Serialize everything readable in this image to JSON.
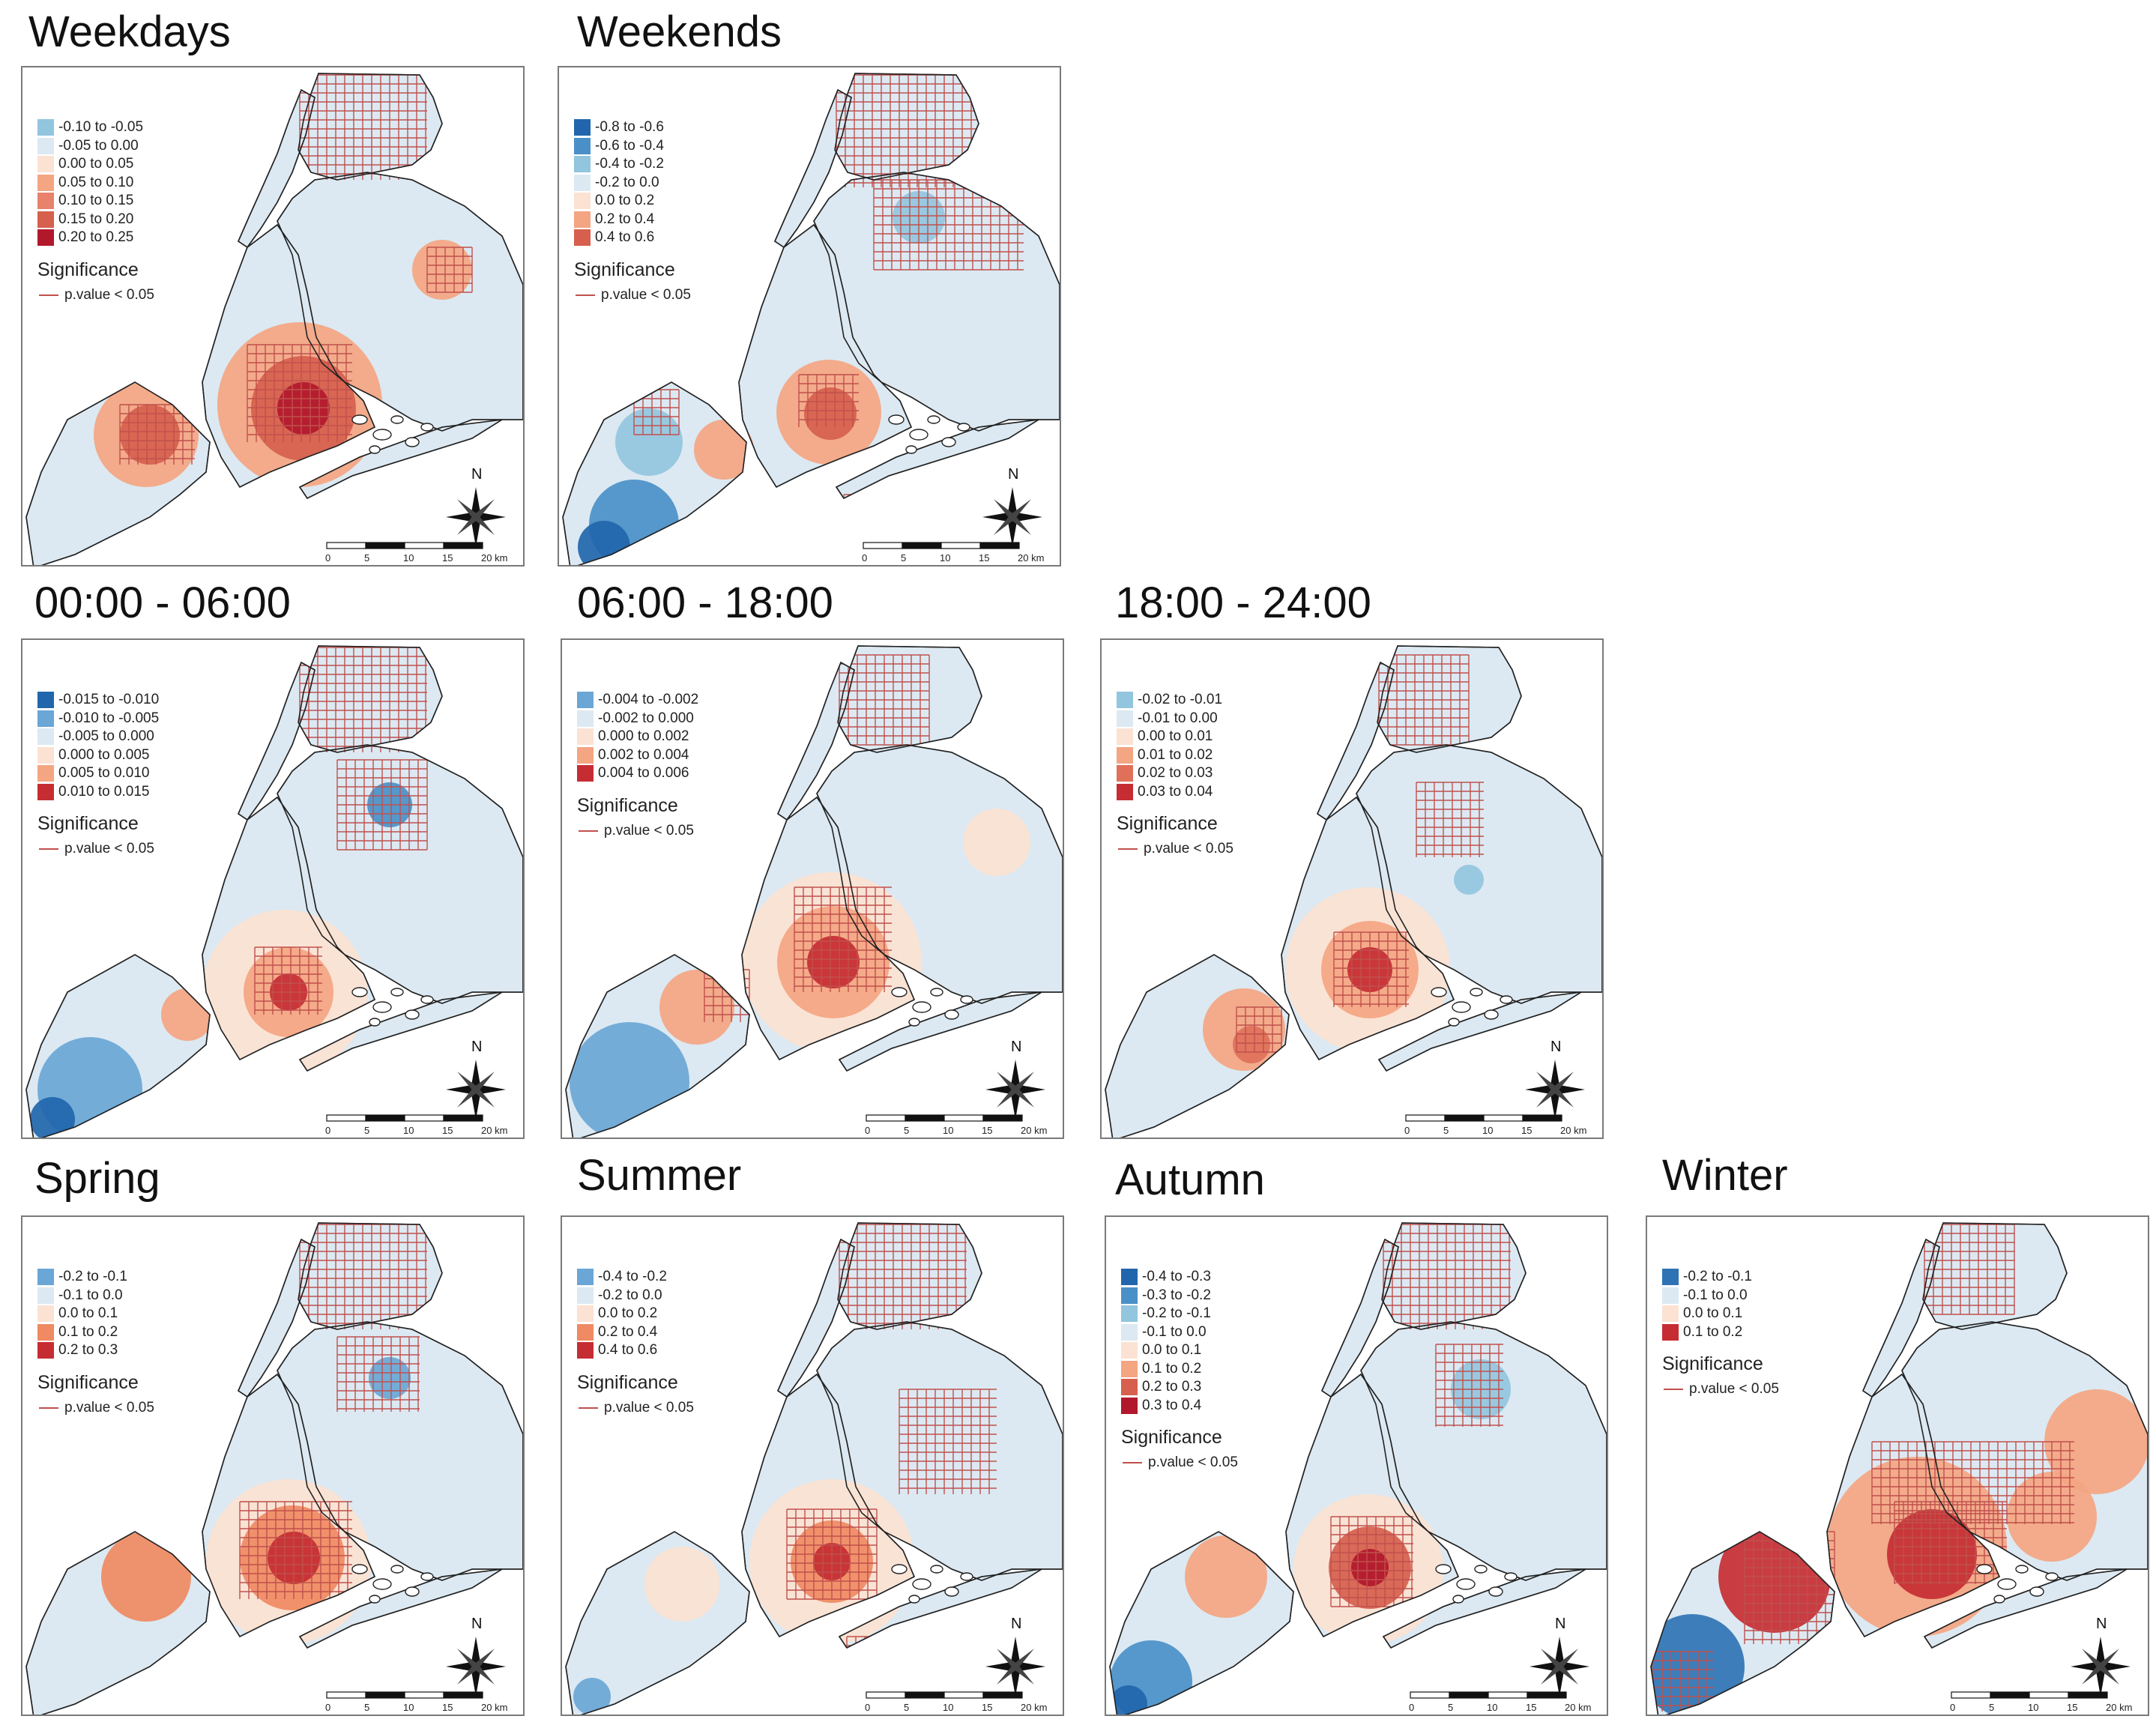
{
  "figure": {
    "significance_title": "Significance",
    "significance_label": "p.value < 0.05",
    "north_label": "N",
    "scale_ticks": [
      "0",
      "5",
      "10",
      "15",
      "20 km"
    ],
    "colors": {
      "blue_dark": "#2166ac",
      "blue_mid": "#4a90c8",
      "blue_light": "#92c5de",
      "blue_pale": "#dce9f2",
      "red_pale": "#fbe2d3",
      "red_light": "#f4a582",
      "red_mid": "#dd5a4a",
      "red_dark": "#b2182b",
      "grid": "#c0504d"
    }
  },
  "panels": [
    {
      "title": "Weekdays",
      "legend": [
        {
          "label": "-0.10 to -0.05",
          "color": "#92c5de"
        },
        {
          "label": "-0.05 to 0.00",
          "color": "#dce9f2"
        },
        {
          "label": "0.00 to 0.05",
          "color": "#fbe2d3"
        },
        {
          "label": "0.05 to 0.10",
          "color": "#f4a582"
        },
        {
          "label": "0.10 to 0.15",
          "color": "#e8826b"
        },
        {
          "label": "0.15 to 0.20",
          "color": "#d6604d"
        },
        {
          "label": "0.20 to 0.25",
          "color": "#b2182b"
        }
      ]
    },
    {
      "title": "Weekends",
      "legend": [
        {
          "label": "-0.8 to -0.6",
          "color": "#2166ac"
        },
        {
          "label": "-0.6 to -0.4",
          "color": "#4a90c8"
        },
        {
          "label": "-0.4 to -0.2",
          "color": "#92c5de"
        },
        {
          "label": "-0.2 to 0.0",
          "color": "#dce9f2"
        },
        {
          "label": "0.0 to 0.2",
          "color": "#fbe2d3"
        },
        {
          "label": "0.2 to 0.4",
          "color": "#f4a582"
        },
        {
          "label": "0.4 to 0.6",
          "color": "#d6604d"
        }
      ]
    },
    {
      "title": "00:00 - 06:00",
      "legend": [
        {
          "label": "-0.015 to -0.010",
          "color": "#2166ac"
        },
        {
          "label": "-0.010 to -0.005",
          "color": "#6aa6d6"
        },
        {
          "label": "-0.005 to 0.000",
          "color": "#dce9f2"
        },
        {
          "label": "0.000 to 0.005",
          "color": "#fbe2d3"
        },
        {
          "label": "0.005 to 0.010",
          "color": "#f4a582"
        },
        {
          "label": "0.010 to 0.015",
          "color": "#c62d33"
        }
      ]
    },
    {
      "title": "06:00 - 18:00",
      "legend": [
        {
          "label": "-0.004 to -0.002",
          "color": "#6aa6d6"
        },
        {
          "label": "-0.002 to 0.000",
          "color": "#dce9f2"
        },
        {
          "label": "0.000 to 0.002",
          "color": "#fbe2d3"
        },
        {
          "label": "0.002 to 0.004",
          "color": "#f4a582"
        },
        {
          "label": "0.004 to 0.006",
          "color": "#c62d33"
        }
      ]
    },
    {
      "title": "18:00 - 24:00",
      "legend": [
        {
          "label": "-0.02 to -0.01",
          "color": "#92c5de"
        },
        {
          "label": "-0.01 to 0.00",
          "color": "#dce9f2"
        },
        {
          "label": "0.00 to 0.01",
          "color": "#fbe2d3"
        },
        {
          "label": "0.01 to 0.02",
          "color": "#f4a582"
        },
        {
          "label": "0.02 to 0.03",
          "color": "#e0705a"
        },
        {
          "label": "0.03 to 0.04",
          "color": "#c62d33"
        }
      ]
    },
    {
      "title": "Spring",
      "legend": [
        {
          "label": "-0.2 to -0.1",
          "color": "#6aa6d6"
        },
        {
          "label": "-0.1 to 0.0",
          "color": "#dce9f2"
        },
        {
          "label": "0.0 to 0.1",
          "color": "#fbe2d3"
        },
        {
          "label": "0.1 to 0.2",
          "color": "#ef8a62"
        },
        {
          "label": "0.2 to 0.3",
          "color": "#c62d33"
        }
      ]
    },
    {
      "title": "Summer",
      "legend": [
        {
          "label": "-0.4 to -0.2",
          "color": "#6aa6d6"
        },
        {
          "label": "-0.2 to 0.0",
          "color": "#dce9f2"
        },
        {
          "label": "0.0 to 0.2",
          "color": "#fbe2d3"
        },
        {
          "label": "0.2 to 0.4",
          "color": "#ef8a62"
        },
        {
          "label": "0.4 to 0.6",
          "color": "#c62d33"
        }
      ]
    },
    {
      "title": "Autumn",
      "legend": [
        {
          "label": "-0.4 to -0.3",
          "color": "#2166ac"
        },
        {
          "label": "-0.3 to -0.2",
          "color": "#4a90c8"
        },
        {
          "label": "-0.2 to -0.1",
          "color": "#92c5de"
        },
        {
          "label": "-0.1 to 0.0",
          "color": "#dce9f2"
        },
        {
          "label": "0.0 to 0.1",
          "color": "#fbe2d3"
        },
        {
          "label": "0.1 to 0.2",
          "color": "#f4a582"
        },
        {
          "label": "0.2 to 0.3",
          "color": "#d6604d"
        },
        {
          "label": "0.3 to 0.4",
          "color": "#b2182b"
        }
      ]
    },
    {
      "title": "Winter",
      "legend": [
        {
          "label": "-0.2 to -0.1",
          "color": "#2f73b5"
        },
        {
          "label": "-0.1 to 0.0",
          "color": "#dce9f2"
        },
        {
          "label": "0.0 to 0.1",
          "color": "#fbe2d3"
        },
        {
          "label": "0.1 to 0.2",
          "color": "#c62d33"
        }
      ]
    }
  ]
}
